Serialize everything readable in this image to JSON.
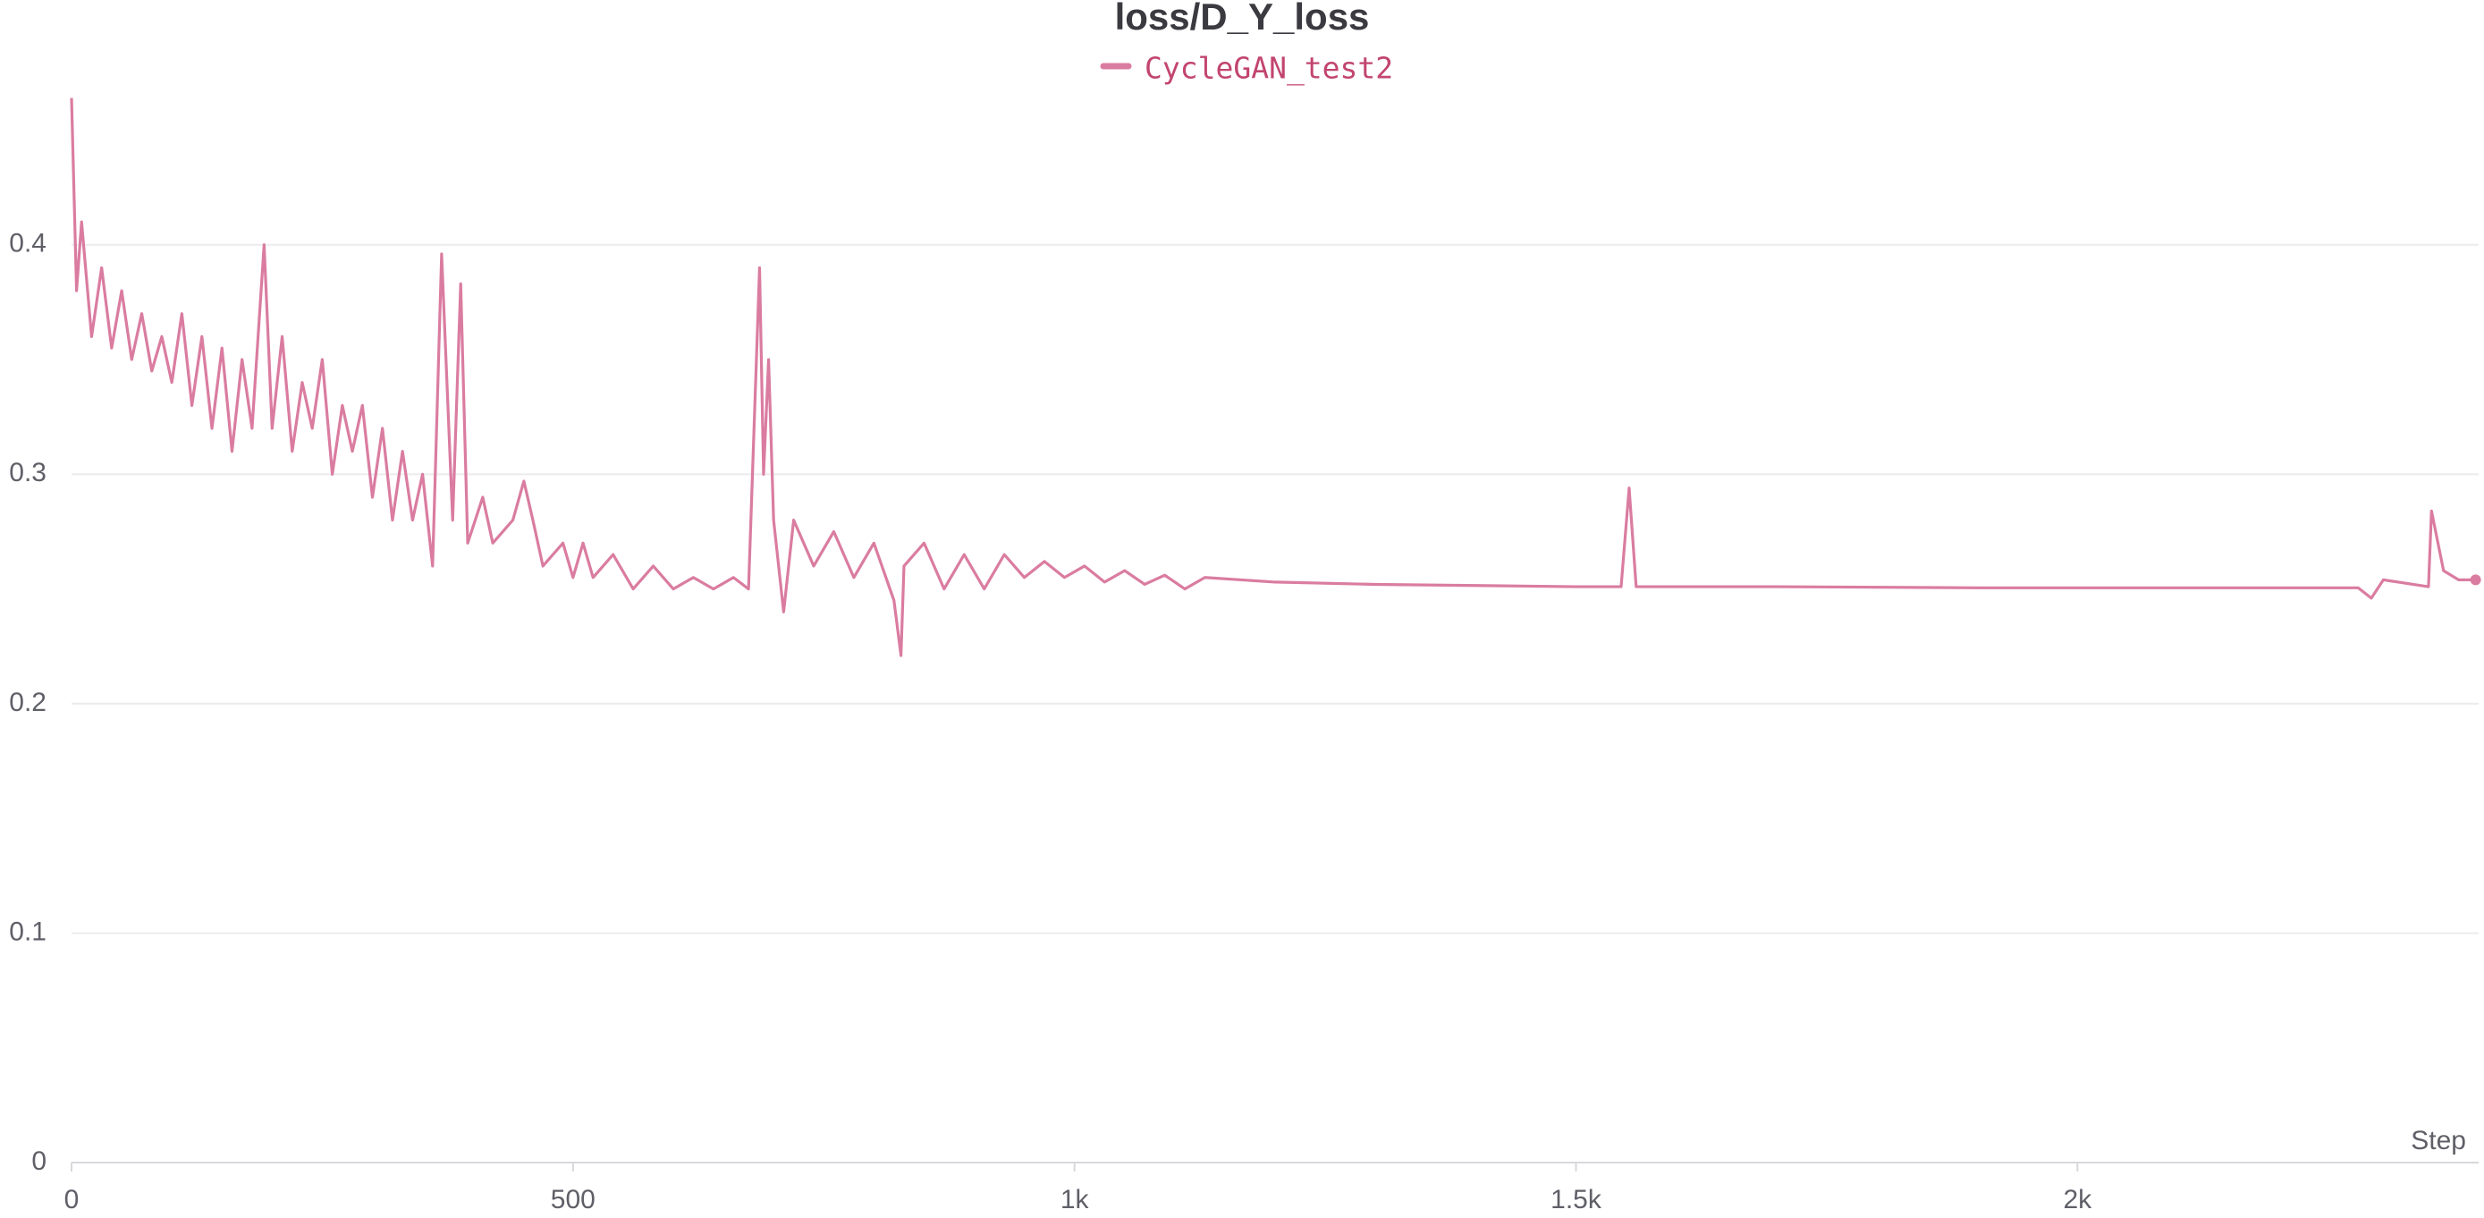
{
  "chart_data": {
    "type": "line",
    "title": "loss/D_Y_loss",
    "x_label": "Step",
    "x": [
      0,
      5,
      10,
      20,
      30,
      40,
      50,
      60,
      70,
      80,
      90,
      100,
      110,
      120,
      130,
      140,
      150,
      160,
      170,
      180,
      192,
      200,
      210,
      220,
      230,
      240,
      250,
      260,
      270,
      280,
      290,
      300,
      310,
      320,
      330,
      340,
      350,
      360,
      369,
      380,
      388,
      395,
      410,
      420,
      440,
      451,
      460,
      470,
      480,
      490,
      500,
      510,
      520,
      540,
      560,
      580,
      600,
      620,
      640,
      660,
      675,
      686,
      690,
      695,
      700,
      710,
      720,
      740,
      760,
      780,
      800,
      820,
      827,
      830,
      850,
      870,
      890,
      910,
      930,
      950,
      970,
      990,
      1010,
      1030,
      1050,
      1070,
      1090,
      1110,
      1130,
      1200,
      1300,
      1400,
      1500,
      1545,
      1553,
      1560,
      1700,
      1900,
      2100,
      2280,
      2293,
      2305,
      2350,
      2353,
      2365,
      2380,
      2397
    ],
    "series": [
      {
        "name": "CycleGAN_test2",
        "color": "#da7ca0",
        "values": [
          0.464,
          0.38,
          0.41,
          0.36,
          0.39,
          0.355,
          0.38,
          0.35,
          0.37,
          0.345,
          0.36,
          0.34,
          0.37,
          0.33,
          0.36,
          0.32,
          0.355,
          0.31,
          0.35,
          0.32,
          0.4,
          0.32,
          0.36,
          0.31,
          0.34,
          0.32,
          0.35,
          0.3,
          0.33,
          0.31,
          0.33,
          0.29,
          0.32,
          0.28,
          0.31,
          0.28,
          0.3,
          0.26,
          0.396,
          0.28,
          0.383,
          0.27,
          0.29,
          0.27,
          0.28,
          0.297,
          0.28,
          0.26,
          0.265,
          0.27,
          0.255,
          0.27,
          0.255,
          0.265,
          0.25,
          0.26,
          0.25,
          0.255,
          0.25,
          0.255,
          0.25,
          0.39,
          0.3,
          0.35,
          0.28,
          0.24,
          0.28,
          0.26,
          0.275,
          0.255,
          0.27,
          0.245,
          0.221,
          0.26,
          0.27,
          0.25,
          0.265,
          0.25,
          0.265,
          0.255,
          0.262,
          0.255,
          0.26,
          0.253,
          0.258,
          0.252,
          0.256,
          0.25,
          0.255,
          0.253,
          0.252,
          0.2515,
          0.251,
          0.251,
          0.294,
          0.251,
          0.251,
          0.2505,
          0.2505,
          0.2505,
          0.246,
          0.254,
          0.251,
          0.284,
          0.258,
          0.254,
          0.254
        ]
      }
    ],
    "xlim": [
      0,
      2400
    ],
    "ylim": [
      0,
      0.465
    ],
    "xticks": [
      0,
      500,
      {
        "value": 1000,
        "label": "1k"
      },
      {
        "value": 1500,
        "label": "1.5k"
      },
      {
        "value": 2000,
        "label": "2k"
      }
    ],
    "yticks": [
      0,
      0.1,
      0.2,
      0.3,
      0.4
    ],
    "grid": true
  }
}
